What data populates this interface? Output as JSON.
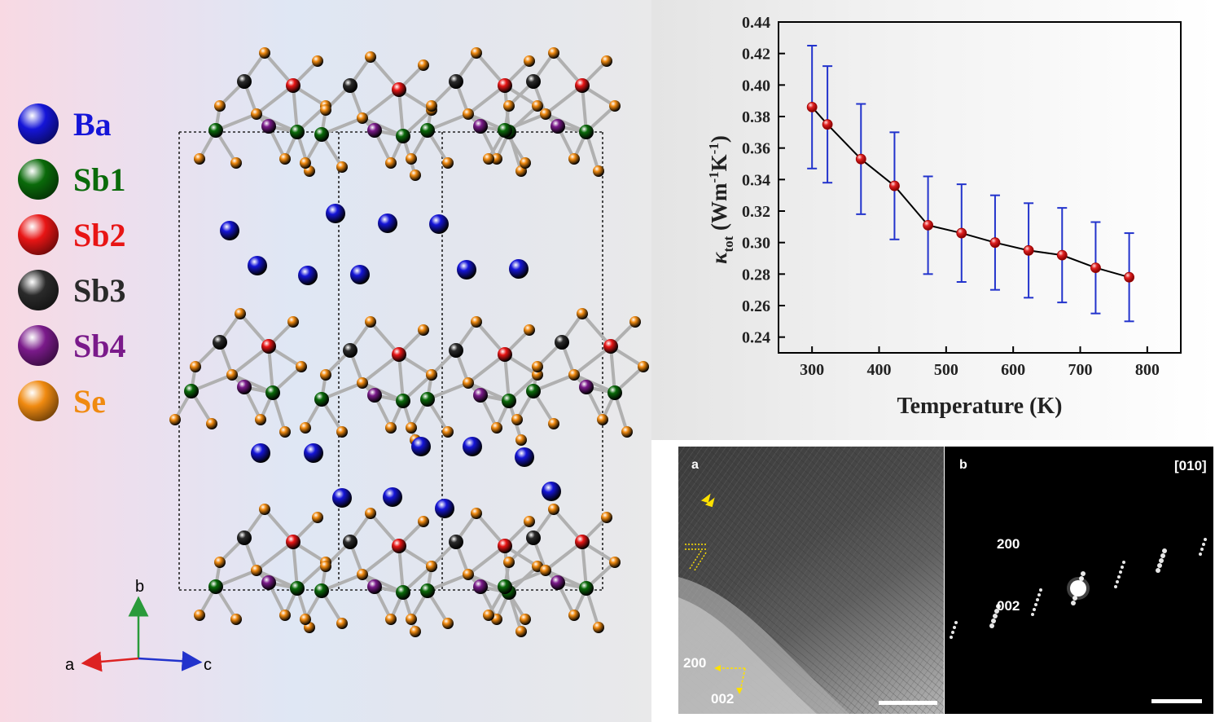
{
  "legend": {
    "items": [
      {
        "label": "Ba",
        "color": "#1515d8"
      },
      {
        "label": "Sb1",
        "color": "#0a6a0a"
      },
      {
        "label": "Sb2",
        "color": "#e81515"
      },
      {
        "label": "Sb3",
        "color": "#2a2a2a"
      },
      {
        "label": "Sb4",
        "color": "#7a1a8a"
      },
      {
        "label": "Se",
        "color": "#f08a10"
      }
    ]
  },
  "crystal_axes": {
    "a": "a",
    "b": "b",
    "c": "c"
  },
  "chart_data": {
    "type": "line",
    "xlabel": "Temperature (K)",
    "ylabel_main": "κ",
    "ylabel_sub": "tot",
    "ylabel_rest": " (Wm",
    "ylabel_sup1": "-1",
    "ylabel_mid": "K",
    "ylabel_sup2": "-1",
    "ylabel_end": ")",
    "xlim": [
      250,
      850
    ],
    "ylim": [
      0.23,
      0.44
    ],
    "xticks": [
      300,
      400,
      500,
      600,
      700,
      800
    ],
    "yticks": [
      0.24,
      0.26,
      0.28,
      0.3,
      0.32,
      0.34,
      0.36,
      0.38,
      0.4,
      0.42,
      0.44
    ],
    "series": [
      {
        "x": [
          300,
          323,
          373,
          423,
          473,
          523,
          573,
          623,
          673,
          723,
          773
        ],
        "y": [
          0.386,
          0.375,
          0.353,
          0.336,
          0.311,
          0.306,
          0.3,
          0.295,
          0.292,
          0.284,
          0.278
        ],
        "err": [
          0.039,
          0.037,
          0.035,
          0.034,
          0.031,
          0.031,
          0.03,
          0.03,
          0.03,
          0.029,
          0.028
        ],
        "color": "#000000",
        "marker_color": "#e02020",
        "errorbar_color": "#2233cc"
      }
    ]
  },
  "tem": {
    "a": {
      "letter": "a",
      "label_200": "200",
      "label_002": "002"
    },
    "b": {
      "letter": "b",
      "zone": "[010]",
      "label_200": "200",
      "label_002": "002"
    }
  }
}
